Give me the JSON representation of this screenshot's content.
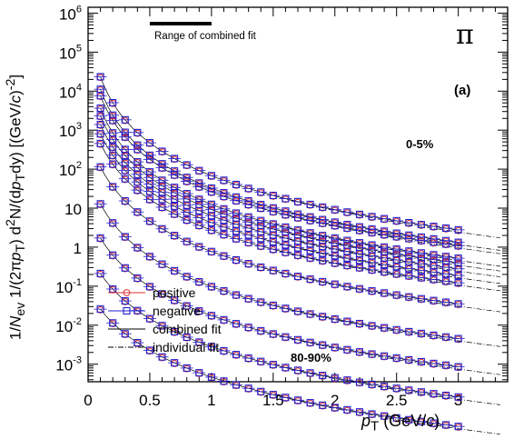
{
  "chart_data": {
    "type": "scatter",
    "particle_label": "π",
    "panel_label": "(a)",
    "ylabel_text": "1/N_ev 1/(2πp_T) d²N/(dp_T dy) [(GeV/c)^-2]",
    "ylabel_parts": {
      "prefix": "1/",
      "nev": "N",
      "nev_sub": "ev",
      "mid": " 1/(2π",
      "pt": "p",
      "pt_sub": "T",
      "d": ") d",
      "exp2": "2",
      "n": "N/(d",
      "pt2": "p",
      "pt2_sub": "T",
      "dy": "dy) [(GeV/",
      "c": "c",
      "close": ")",
      "exp": "-2",
      "end": "]"
    },
    "xlabel_text": "p_T (GeV/c)",
    "xlabel_parts": {
      "p": "p",
      "sub": "T",
      "rest": " (GeV/",
      "c": "c",
      "end": ")"
    },
    "xlim": [
      0,
      3.4
    ],
    "ylim_log10": [
      -3.45,
      6.15
    ],
    "x_tick_labels": [
      "0",
      "0.5",
      "1",
      "1.5",
      "2",
      "2.5",
      "3"
    ],
    "y_tick_labels": [
      {
        "base": "10",
        "exp": "-3"
      },
      {
        "base": "10",
        "exp": "-2"
      },
      {
        "base": "10",
        "exp": "-1"
      },
      {
        "base": "1",
        "exp": ""
      },
      {
        "base": "10",
        "exp": ""
      },
      {
        "base": "10",
        "exp": "2"
      },
      {
        "base": "10",
        "exp": "3"
      },
      {
        "base": "10",
        "exp": "4"
      },
      {
        "base": "10",
        "exp": "5"
      },
      {
        "base": "10",
        "exp": "6"
      }
    ],
    "range_bar": {
      "label": "Range of combined fit",
      "x_from": 0.5,
      "x_to": 1.0
    },
    "annotations": {
      "top_centrality": "0-5%",
      "bottom_centrality": "80-90%"
    },
    "x": [
      0.1,
      0.2,
      0.3,
      0.4,
      0.5,
      0.6,
      0.7,
      0.8,
      0.9,
      1.0,
      1.1,
      1.2,
      1.3,
      1.4,
      1.5,
      1.6,
      1.7,
      1.8,
      1.9,
      2.0,
      2.1,
      2.2,
      2.3,
      2.4,
      2.5,
      2.6,
      2.7,
      2.8,
      2.9,
      3.0
    ],
    "series": [
      {
        "shape": {
          "A": 5.8,
          "B": 3.0,
          "C": 0.05
        }
      },
      {
        "shape": {
          "A": 5.48,
          "B": 3.0,
          "C": 0.05
        }
      },
      {
        "shape": {
          "A": 5.16,
          "B": 3.0,
          "C": 0.06
        }
      },
      {
        "shape": {
          "A": 4.84,
          "B": 3.0,
          "C": 0.06
        }
      },
      {
        "shape": {
          "A": 4.52,
          "B": 3.0,
          "C": 0.07
        }
      },
      {
        "shape": {
          "A": 4.2,
          "B": 3.0,
          "C": 0.08
        }
      },
      {
        "shape": {
          "A": 3.88,
          "B": 3.0,
          "C": 0.09
        }
      },
      {
        "shape": {
          "A": 3.56,
          "B": 3.0,
          "C": 0.1
        }
      },
      {
        "shape": {
          "A": 2.9,
          "B": 3.0,
          "C": 0.11
        }
      },
      {
        "shape": {
          "A": 1.9,
          "B": 3.0,
          "C": 0.12
        }
      },
      {
        "shape": {
          "A": 0.9,
          "B": 3.0,
          "C": 0.15
        }
      },
      {
        "shape": {
          "A": -0.1,
          "B": 3.0,
          "C": 0.18
        }
      },
      {
        "shape": {
          "A": -1.1,
          "B": 3.0,
          "C": 0.22
        }
      }
    ],
    "legend": {
      "placement": "bottom-left",
      "entries": [
        {
          "label": "positive",
          "marker": "circle",
          "color": "#e03030"
        },
        {
          "label": "negative",
          "marker": "square",
          "color": "#2020d0"
        },
        {
          "label": "combined fit",
          "style": "solid",
          "color": "#000000"
        },
        {
          "label": "individual fit",
          "style": "dashdot",
          "color": "#000000"
        }
      ]
    },
    "colors": {
      "positive": "#e03030",
      "negative": "#2020d0",
      "fit": "#000000"
    }
  }
}
